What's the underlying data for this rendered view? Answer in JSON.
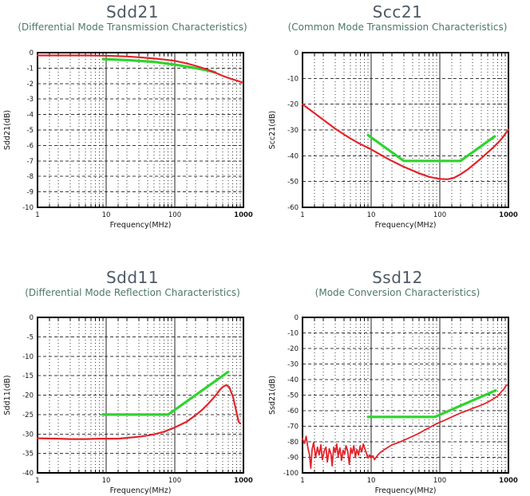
{
  "colors": {
    "measured_red": "#e3242b",
    "limit_green": "#2fd32f",
    "title_text": "#4d5965",
    "subtitle_text": "#4e776d",
    "grid": "#3a3a3a",
    "axis": "#000000"
  },
  "chart_data": [
    {
      "type": "line",
      "title": "Sdd21",
      "subtitle": "(Differential Mode Transmission Characteristics)",
      "xlabel": "Frequency(MHz)",
      "ylabel": "Sdd21(dB)",
      "xscale": "log",
      "xlim": [
        1,
        1000
      ],
      "ylim": [
        -10,
        0
      ],
      "xticks": [
        1,
        10,
        100,
        1000
      ],
      "yticks": [
        0,
        -1,
        -2,
        -3,
        -4,
        -5,
        -6,
        -7,
        -8,
        -9,
        -10
      ],
      "grid": true,
      "legend": "none",
      "series": [
        {
          "name": "limit-line",
          "color": "#2fd32f",
          "width": 3.2,
          "points": [
            [
              9,
              -0.42
            ],
            [
              20,
              -0.48
            ],
            [
              50,
              -0.6
            ],
            [
              100,
              -0.78
            ],
            [
              150,
              -0.9
            ],
            [
              200,
              -1.0
            ],
            [
              300,
              -1.15
            ],
            [
              390,
              -1.28
            ]
          ]
        },
        {
          "name": "measured",
          "color": "#e3242b",
          "width": 2.2,
          "points": [
            [
              1,
              -0.18
            ],
            [
              3,
              -0.18
            ],
            [
              5,
              -0.18
            ],
            [
              10,
              -0.2
            ],
            [
              20,
              -0.25
            ],
            [
              30,
              -0.3
            ],
            [
              50,
              -0.38
            ],
            [
              70,
              -0.45
            ],
            [
              100,
              -0.53
            ],
            [
              150,
              -0.7
            ],
            [
              200,
              -0.85
            ],
            [
              300,
              -1.1
            ],
            [
              400,
              -1.32
            ],
            [
              500,
              -1.5
            ],
            [
              600,
              -1.63
            ],
            [
              700,
              -1.73
            ],
            [
              800,
              -1.81
            ],
            [
              900,
              -1.88
            ],
            [
              970,
              -1.93
            ]
          ]
        }
      ]
    },
    {
      "type": "line",
      "title": "Scc21",
      "subtitle": "(Common Mode Transmission Characteristics)",
      "xlabel": "Frequency(MHz)",
      "ylabel": "Scc21(dB)",
      "xscale": "log",
      "xlim": [
        1,
        1000
      ],
      "ylim": [
        -60,
        0
      ],
      "xticks": [
        1,
        10,
        100,
        1000
      ],
      "yticks": [
        0,
        -10,
        -20,
        -30,
        -40,
        -50,
        -60
      ],
      "grid": true,
      "legend": "none",
      "series": [
        {
          "name": "limit-line",
          "color": "#2fd32f",
          "width": 3.2,
          "points": [
            [
              9,
              -32
            ],
            [
              30,
              -42
            ],
            [
              200,
              -42
            ],
            [
              630,
              -32.5
            ]
          ]
        },
        {
          "name": "measured",
          "color": "#e3242b",
          "width": 2.2,
          "points": [
            [
              1,
              -20
            ],
            [
              1.5,
              -23.5
            ],
            [
              2,
              -26
            ],
            [
              3,
              -29.5
            ],
            [
              4,
              -31.7
            ],
            [
              5,
              -33.3
            ],
            [
              7,
              -35.5
            ],
            [
              10,
              -37.5
            ],
            [
              15,
              -40.2
            ],
            [
              20,
              -42
            ],
            [
              30,
              -44.3
            ],
            [
              50,
              -46.8
            ],
            [
              70,
              -48.2
            ],
            [
              100,
              -49
            ],
            [
              130,
              -49.1
            ],
            [
              160,
              -48.6
            ],
            [
              200,
              -47.2
            ],
            [
              250,
              -45.5
            ],
            [
              300,
              -43.8
            ],
            [
              400,
              -41
            ],
            [
              500,
              -38.7
            ],
            [
              600,
              -36.8
            ],
            [
              700,
              -35
            ],
            [
              800,
              -33.3
            ],
            [
              900,
              -31.5
            ],
            [
              1000,
              -29.8
            ]
          ]
        }
      ]
    },
    {
      "type": "line",
      "title": "Sdd11",
      "subtitle": "(Differential Mode Reflection Characteristics)",
      "xlabel": "Frequency(MHz)",
      "ylabel": "Sdd11(dB)",
      "xscale": "log",
      "xlim": [
        1,
        1000
      ],
      "ylim": [
        -40,
        0
      ],
      "xticks": [
        1,
        10,
        100,
        1000
      ],
      "yticks": [
        0,
        -5,
        -10,
        -15,
        -20,
        -25,
        -30,
        -35,
        -40
      ],
      "grid": true,
      "legend": "none",
      "series": [
        {
          "name": "limit-line",
          "color": "#2fd32f",
          "width": 3.2,
          "points": [
            [
              9,
              -25
            ],
            [
              80,
              -25
            ],
            [
              600,
              -14
            ]
          ]
        },
        {
          "name": "measured",
          "color": "#e3242b",
          "width": 2.2,
          "points": [
            [
              1,
              -31.1
            ],
            [
              2,
              -31.2
            ],
            [
              3,
              -31.3
            ],
            [
              5,
              -31.3
            ],
            [
              8,
              -31.2
            ],
            [
              10,
              -31.2
            ],
            [
              15,
              -31.2
            ],
            [
              20,
              -31
            ],
            [
              30,
              -30.7
            ],
            [
              40,
              -30.4
            ],
            [
              50,
              -30.1
            ],
            [
              70,
              -29.4
            ],
            [
              100,
              -28.3
            ],
            [
              150,
              -26.8
            ],
            [
              200,
              -25.2
            ],
            [
              250,
              -23.8
            ],
            [
              300,
              -22.4
            ],
            [
              350,
              -21.1
            ],
            [
              400,
              -19.9
            ],
            [
              450,
              -18.7
            ],
            [
              500,
              -17.9
            ],
            [
              560,
              -17.4
            ],
            [
              620,
              -17.9
            ],
            [
              700,
              -20.3
            ],
            [
              780,
              -23.8
            ],
            [
              850,
              -26.8
            ],
            [
              900,
              -27.3
            ]
          ]
        }
      ]
    },
    {
      "type": "line",
      "title": "Ssd12",
      "subtitle": "(Mode Conversion Characteristics)",
      "xlabel": "Frequency(MHz)",
      "ylabel": "Ssd21(dB)",
      "xscale": "log",
      "xlim": [
        1,
        1000
      ],
      "ylim": [
        -100,
        0
      ],
      "xticks": [
        1,
        10,
        100,
        1000
      ],
      "yticks": [
        0,
        -10,
        -20,
        -30,
        -40,
        -50,
        -60,
        -70,
        -80,
        -90,
        -100
      ],
      "grid": true,
      "legend": "none",
      "series": [
        {
          "name": "limit-line",
          "color": "#2fd32f",
          "width": 3.2,
          "points": [
            [
              9,
              -64
            ],
            [
              85,
              -64
            ],
            [
              650,
              -47
            ]
          ]
        },
        {
          "name": "measured",
          "color": "#e3242b",
          "width": 1.8,
          "points": [
            [
              1,
              -78
            ],
            [
              1.07,
              -81
            ],
            [
              1.13,
              -76.5
            ],
            [
              1.2,
              -84
            ],
            [
              1.26,
              -88
            ],
            [
              1.32,
              -97
            ],
            [
              1.38,
              -85
            ],
            [
              1.45,
              -80.5
            ],
            [
              1.55,
              -90
            ],
            [
              1.65,
              -83.5
            ],
            [
              1.75,
              -88.5
            ],
            [
              1.85,
              -82
            ],
            [
              1.95,
              -91.5
            ],
            [
              2.1,
              -85
            ],
            [
              2.2,
              -83.5
            ],
            [
              2.3,
              -93
            ],
            [
              2.45,
              -84.5
            ],
            [
              2.6,
              -88
            ],
            [
              2.7,
              -95.5
            ],
            [
              2.85,
              -83.5
            ],
            [
              3,
              -87
            ],
            [
              3.15,
              -81.5
            ],
            [
              3.3,
              -89.5
            ],
            [
              3.5,
              -84
            ],
            [
              3.7,
              -92
            ],
            [
              3.9,
              -85.5
            ],
            [
              4.1,
              -88
            ],
            [
              4.3,
              -82.5
            ],
            [
              4.55,
              -86
            ],
            [
              4.8,
              -94.5
            ],
            [
              5.05,
              -84
            ],
            [
              5.3,
              -87.5
            ],
            [
              5.6,
              -82.5
            ],
            [
              5.9,
              -90
            ],
            [
              6.2,
              -85
            ],
            [
              6.55,
              -88.5
            ],
            [
              6.9,
              -83
            ],
            [
              7.3,
              -86.5
            ],
            [
              7.7,
              -81.5
            ],
            [
              8.1,
              -84.5
            ],
            [
              8.55,
              -87.5
            ],
            [
              9,
              -90.5
            ],
            [
              9.5,
              -88.5
            ],
            [
              10,
              -90.5
            ],
            [
              10.6,
              -89
            ],
            [
              11.2,
              -91.5
            ],
            [
              11.8,
              -90
            ],
            [
              12.5,
              -88.5
            ],
            [
              13.5,
              -87
            ],
            [
              14.5,
              -86
            ],
            [
              15.5,
              -85
            ],
            [
              17,
              -84
            ],
            [
              20,
              -82
            ],
            [
              25,
              -80.5
            ],
            [
              30,
              -79
            ],
            [
              40,
              -76.5
            ],
            [
              50,
              -74.5
            ],
            [
              60,
              -72.5
            ],
            [
              70,
              -71
            ],
            [
              80,
              -69.5
            ],
            [
              100,
              -67.5
            ],
            [
              120,
              -66
            ],
            [
              150,
              -64
            ],
            [
              200,
              -61.5
            ],
            [
              250,
              -60
            ],
            [
              300,
              -58.5
            ],
            [
              400,
              -56.5
            ],
            [
              500,
              -54.5
            ],
            [
              600,
              -52.5
            ],
            [
              700,
              -50.5
            ],
            [
              800,
              -47.5
            ],
            [
              850,
              -46.5
            ],
            [
              900,
              -44.5
            ],
            [
              950,
              -43.5
            ]
          ]
        }
      ]
    }
  ]
}
